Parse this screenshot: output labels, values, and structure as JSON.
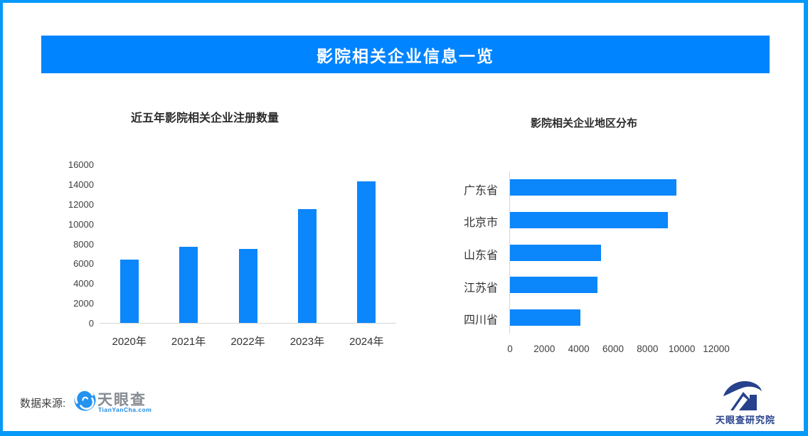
{
  "header": {
    "title": "影院相关企业信息一览"
  },
  "colors": {
    "page_border": "#0599f9",
    "banner_bg": "#0084ff",
    "bar_fill": "#0b86fb",
    "axis_line": "#d6d6d6",
    "tick_text": "#3f3f3f",
    "title_text": "#2b2b2b",
    "footer_navy": "#27418c",
    "tyc_blue": "#2492ef"
  },
  "chart_data": [
    {
      "type": "bar",
      "orientation": "vertical",
      "title": "近五年影院相关企业注册数量",
      "categories": [
        "2020年",
        "2021年",
        "2022年",
        "2023年",
        "2024年"
      ],
      "values": [
        6400,
        7700,
        7500,
        11500,
        14300
      ],
      "xlabel": "",
      "ylabel": "",
      "ylim": [
        0,
        16000
      ],
      "yticks": [
        0,
        2000,
        4000,
        6000,
        8000,
        10000,
        12000,
        14000,
        16000
      ],
      "grid": false,
      "legend": false
    },
    {
      "type": "bar",
      "orientation": "horizontal",
      "title": "影院相关企业地区分布",
      "categories": [
        "广东省",
        "北京市",
        "山东省",
        "江苏省",
        "四川省"
      ],
      "values": [
        9700,
        9200,
        5300,
        5100,
        4100
      ],
      "xlabel": "",
      "ylabel": "",
      "xlim": [
        0,
        12000
      ],
      "xticks": [
        0,
        2000,
        4000,
        6000,
        8000,
        10000,
        12000
      ],
      "grid": false,
      "legend": false
    }
  ],
  "footer": {
    "source_label": "数据来源:",
    "tianyancha": {
      "name": "天眼查",
      "domain": "TianYanCha.com"
    },
    "research": {
      "name": "天眼查研究院"
    }
  }
}
